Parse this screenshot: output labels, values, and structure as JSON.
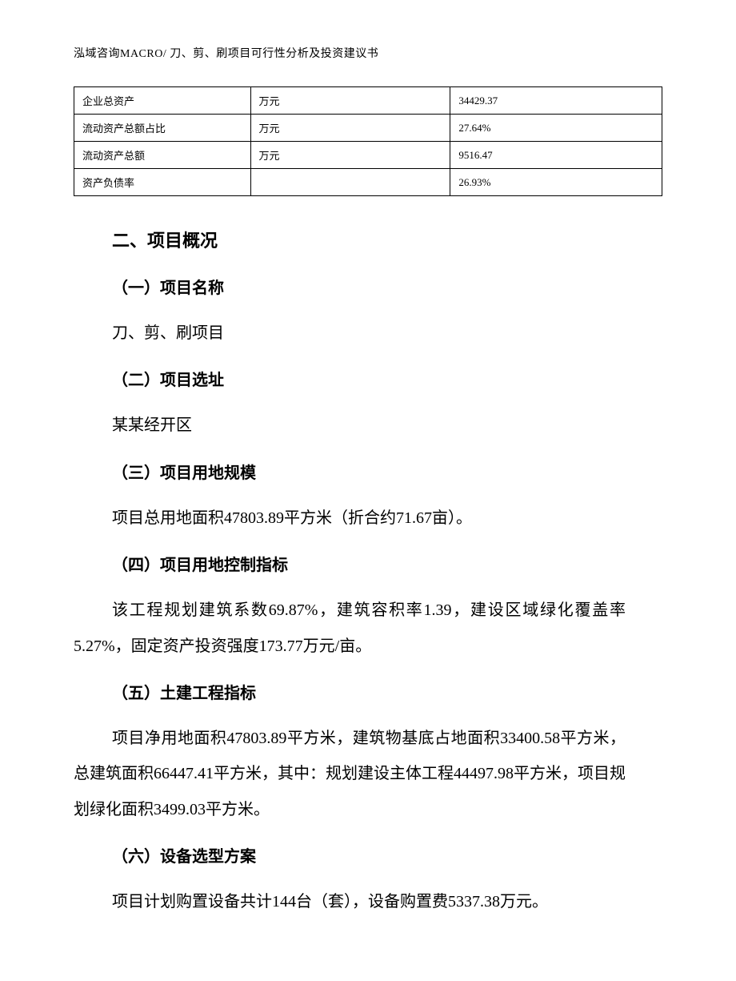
{
  "header": {
    "text": "泓域咨询MACRO/   刀、剪、刷项目可行性分析及投资建议书"
  },
  "table": {
    "rows": [
      {
        "c1": "企业总资产",
        "c2": "万元",
        "c3": "34429.37"
      },
      {
        "c1": "流动资产总额占比",
        "c2": "万元",
        "c3": "27.64%"
      },
      {
        "c1": "流动资产总额",
        "c2": "万元",
        "c3": "9516.47"
      },
      {
        "c1": "资产负债率",
        "c2": "",
        "c3": "26.93%"
      }
    ]
  },
  "section_main": "二、项目概况",
  "subs": {
    "s1": {
      "title": "（一）项目名称",
      "body": "刀、剪、刷项目"
    },
    "s2": {
      "title": "（二）项目选址",
      "body": "某某经开区"
    },
    "s3": {
      "title": "（三）项目用地规模",
      "body": "项目总用地面积47803.89平方米（折合约71.67亩）。"
    },
    "s4": {
      "title": "（四）项目用地控制指标",
      "body": "该工程规划建筑系数69.87%，建筑容积率1.39，建设区域绿化覆盖率5.27%，固定资产投资强度173.77万元/亩。"
    },
    "s5": {
      "title": "（五）土建工程指标",
      "body": "项目净用地面积47803.89平方米，建筑物基底占地面积33400.58平方米，总建筑面积66447.41平方米，其中：规划建设主体工程44497.98平方米，项目规划绿化面积3499.03平方米。"
    },
    "s6": {
      "title": "（六）设备选型方案",
      "body": "项目计划购置设备共计144台（套），设备购置费5337.38万元。"
    }
  }
}
